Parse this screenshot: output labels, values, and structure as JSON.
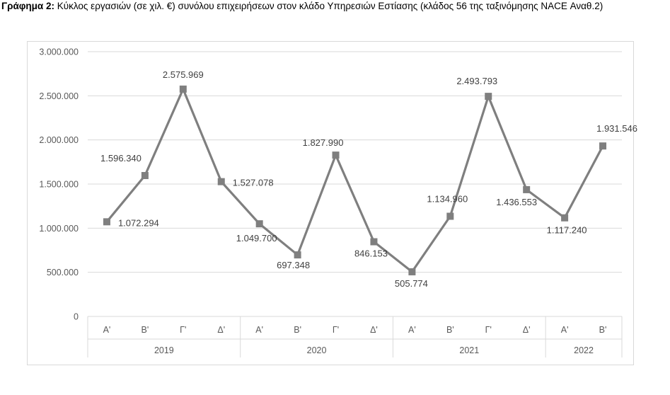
{
  "caption": {
    "bold": "Γράφημα 2:",
    "text": " Κύκλος εργασιών (σε χιλ. €) συνόλου επιχειρήσεων στον κλάδο Υπηρεσιών Εστίασης (κλάδος 56 της ταξινόμησης NACE Αναθ.2)"
  },
  "colors": {
    "line": "#7f7f7f",
    "grid": "#d9d9d9",
    "text": "#595959"
  },
  "chart_data": {
    "type": "line",
    "ylim": [
      0,
      3000000
    ],
    "yticks": [
      "0",
      "500.000",
      "1.000.000",
      "1.500.000",
      "2.000.000",
      "2.500.000",
      "3.000.000"
    ],
    "years": [
      {
        "label": "2019",
        "quarters": 4
      },
      {
        "label": "2020",
        "quarters": 4
      },
      {
        "label": "2021",
        "quarters": 4
      },
      {
        "label": "2022",
        "quarters": 2
      }
    ],
    "categories": [
      "Α'",
      "Β'",
      "Γ'",
      "Δ'",
      "Α'",
      "Β'",
      "Γ'",
      "Δ'",
      "Α'",
      "Β'",
      "Γ'",
      "Δ'",
      "Α'",
      "Β'"
    ],
    "values": [
      1072294,
      1596340,
      2575969,
      1527078,
      1049700,
      697348,
      1827990,
      846153,
      505774,
      1134960,
      2493793,
      1436553,
      1117240,
      1931546
    ],
    "data_labels": [
      "1.072.294",
      "1.596.340",
      "2.575.969",
      "1.527.078",
      "1.049.700",
      "697.348",
      "1.827.990",
      "846.153",
      "505.774",
      "1.134.960",
      "2.493.793",
      "1.436.553",
      "1.117.240",
      "1.931.546"
    ],
    "marker": "square",
    "grid": true,
    "legend": "none"
  }
}
